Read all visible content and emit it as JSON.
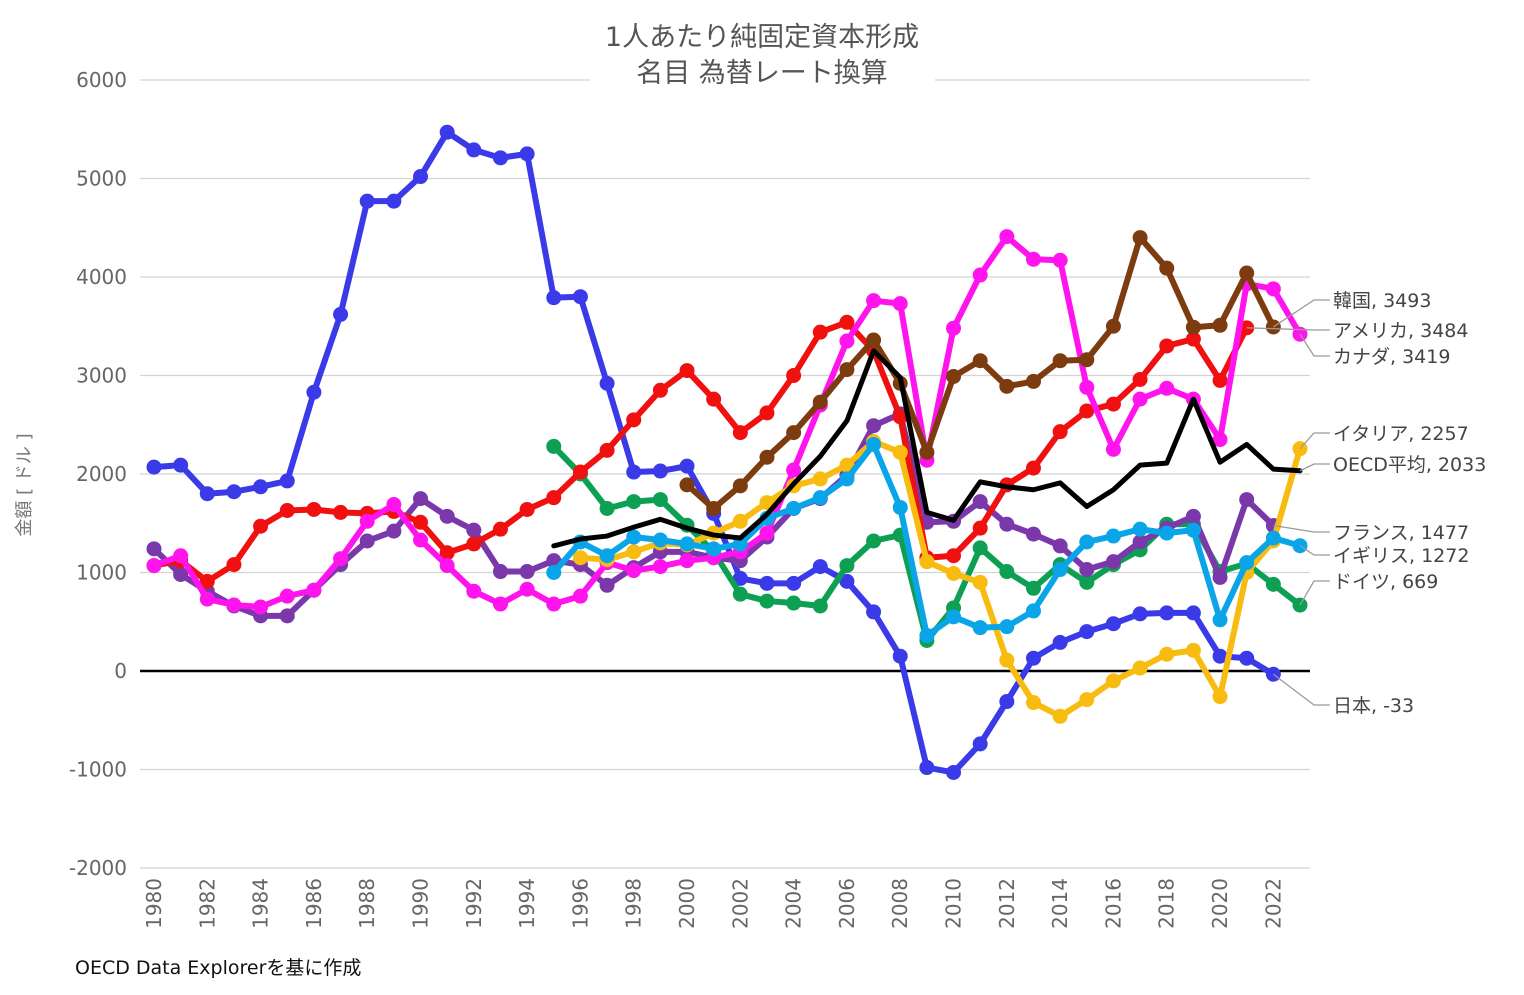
{
  "chart_data": {
    "type": "line",
    "title": "1人あたり純固定資本形成",
    "subtitle": "名目 為替レート換算",
    "ylabel": "金額 [ ドル ]",
    "xlabel": "",
    "source": "OECD Data Explorerを基に作成",
    "ylim": [
      -2000,
      6000
    ],
    "yticks": [
      "6000",
      "5000",
      "4000",
      "3000",
      "2000",
      "1000",
      "0",
      "-1000",
      "-2000"
    ],
    "xrange": [
      1980,
      2023
    ],
    "xticks": [
      "1980",
      "1982",
      "1984",
      "1986",
      "1988",
      "1990",
      "1992",
      "1994",
      "1996",
      "1998",
      "2000",
      "2002",
      "2004",
      "2006",
      "2008",
      "2010",
      "2012",
      "2014",
      "2016",
      "2018",
      "2020",
      "2022"
    ],
    "grid": true,
    "legend": "end-labels-right",
    "series": [
      {
        "name": "日本",
        "color": "#3a3ae8",
        "marker": true,
        "end_label": "日本, -33",
        "start": 1980,
        "values": [
          2070,
          2090,
          1800,
          1820,
          1870,
          1930,
          2830,
          3620,
          4770,
          4770,
          5020,
          5470,
          5290,
          5210,
          5250,
          3790,
          3800,
          2920,
          2020,
          2030,
          2080,
          1600,
          940,
          890,
          890,
          1060,
          910,
          600,
          150,
          -980,
          -1030,
          -740,
          -310,
          130,
          290,
          400,
          480,
          580,
          590,
          590,
          150,
          130,
          -33
        ]
      },
      {
        "name": "ドイツ",
        "color": "#0ea052",
        "marker": true,
        "end_label": "ドイツ, 669",
        "start": 1995,
        "values": [
          2280,
          2000,
          1650,
          1720,
          1740,
          1480,
          1210,
          780,
          710,
          690,
          660,
          1070,
          1320,
          1380,
          310,
          640,
          1250,
          1010,
          840,
          1080,
          900,
          1080,
          1230,
          1490,
          1490,
          1010,
          1090,
          880,
          669
        ]
      },
      {
        "name": "フランス",
        "color": "#7a38aa",
        "marker": true,
        "end_label": "フランス, 1477",
        "start": 1980,
        "values": [
          1240,
          980,
          810,
          660,
          560,
          560,
          820,
          1080,
          1320,
          1420,
          1750,
          1570,
          1430,
          1010,
          1010,
          1120,
          1080,
          870,
          1050,
          1210,
          1210,
          1150,
          1120,
          1360,
          1650,
          1750,
          1990,
          2490,
          2610,
          1510,
          1520,
          1720,
          1490,
          1390,
          1270,
          1030,
          1110,
          1310,
          1450,
          1570,
          950,
          1740,
          1477
        ]
      },
      {
        "name": "アメリカ",
        "color": "#f01010",
        "marker": true,
        "end_label": "アメリカ, 3484",
        "start": 1980,
        "values": [
          1070,
          1120,
          910,
          1080,
          1470,
          1630,
          1640,
          1610,
          1600,
          1620,
          1510,
          1200,
          1290,
          1440,
          1640,
          1760,
          2020,
          2240,
          2550,
          2850,
          3050,
          2760,
          2420,
          2620,
          3000,
          3440,
          3540,
          3250,
          2580,
          1150,
          1170,
          1450,
          1890,
          2060,
          2430,
          2640,
          2710,
          2960,
          3300,
          3370,
          2950,
          3484
        ]
      },
      {
        "name": "カナダ",
        "color": "#ff14ee",
        "marker": true,
        "end_label": "カナダ, 3419",
        "start": 1980,
        "values": [
          1070,
          1170,
          730,
          670,
          650,
          760,
          820,
          1140,
          1520,
          1690,
          1330,
          1070,
          810,
          680,
          830,
          680,
          760,
          1100,
          1020,
          1060,
          1120,
          1150,
          1210,
          1400,
          2040,
          2700,
          3350,
          3760,
          3730,
          2140,
          3480,
          4020,
          4410,
          4180,
          4170,
          2880,
          2250,
          2760,
          2870,
          2760,
          2350,
          3930,
          3880,
          3419
        ]
      },
      {
        "name": "韓国",
        "color": "#7d3b10",
        "marker": true,
        "end_label": "韓国, 3493",
        "start": 2000,
        "values": [
          1890,
          1650,
          1880,
          2170,
          2420,
          2730,
          3060,
          3360,
          2920,
          2220,
          2990,
          3150,
          2890,
          2940,
          3150,
          3160,
          3500,
          4400,
          4090,
          3490,
          3510,
          4040,
          3493
        ]
      },
      {
        "name": "イタリア",
        "color": "#f8bc10",
        "marker": true,
        "end_label": "イタリア, 2257",
        "start": 1996,
        "values": [
          1150,
          1130,
          1210,
          1300,
          1280,
          1400,
          1520,
          1710,
          1880,
          1950,
          2090,
          2330,
          2220,
          1110,
          990,
          900,
          110,
          -320,
          -460,
          -290,
          -100,
          30,
          170,
          210,
          -260,
          1000,
          1320,
          2257
        ]
      },
      {
        "name": "イギリス",
        "color": "#0aa5e8",
        "marker": true,
        "end_label": "イギリス, 1272",
        "start": 1995,
        "values": [
          1000,
          1310,
          1170,
          1360,
          1330,
          1290,
          1240,
          1290,
          1550,
          1650,
          1760,
          1950,
          2300,
          1660,
          360,
          550,
          440,
          450,
          610,
          1030,
          1310,
          1370,
          1440,
          1400,
          1430,
          520,
          1100,
          1350,
          1272
        ]
      },
      {
        "name": "OECD平均",
        "color": "#000000",
        "marker": false,
        "end_label": "OECD平均, 2033",
        "start": 1995,
        "values": [
          1270,
          1340,
          1370,
          1460,
          1540,
          1450,
          1380,
          1350,
          1590,
          1900,
          2180,
          2540,
          3250,
          2980,
          1610,
          1530,
          1920,
          1870,
          1840,
          1910,
          1670,
          1840,
          2090,
          2110,
          2760,
          2120,
          2300,
          2050,
          2033
        ]
      }
    ]
  }
}
